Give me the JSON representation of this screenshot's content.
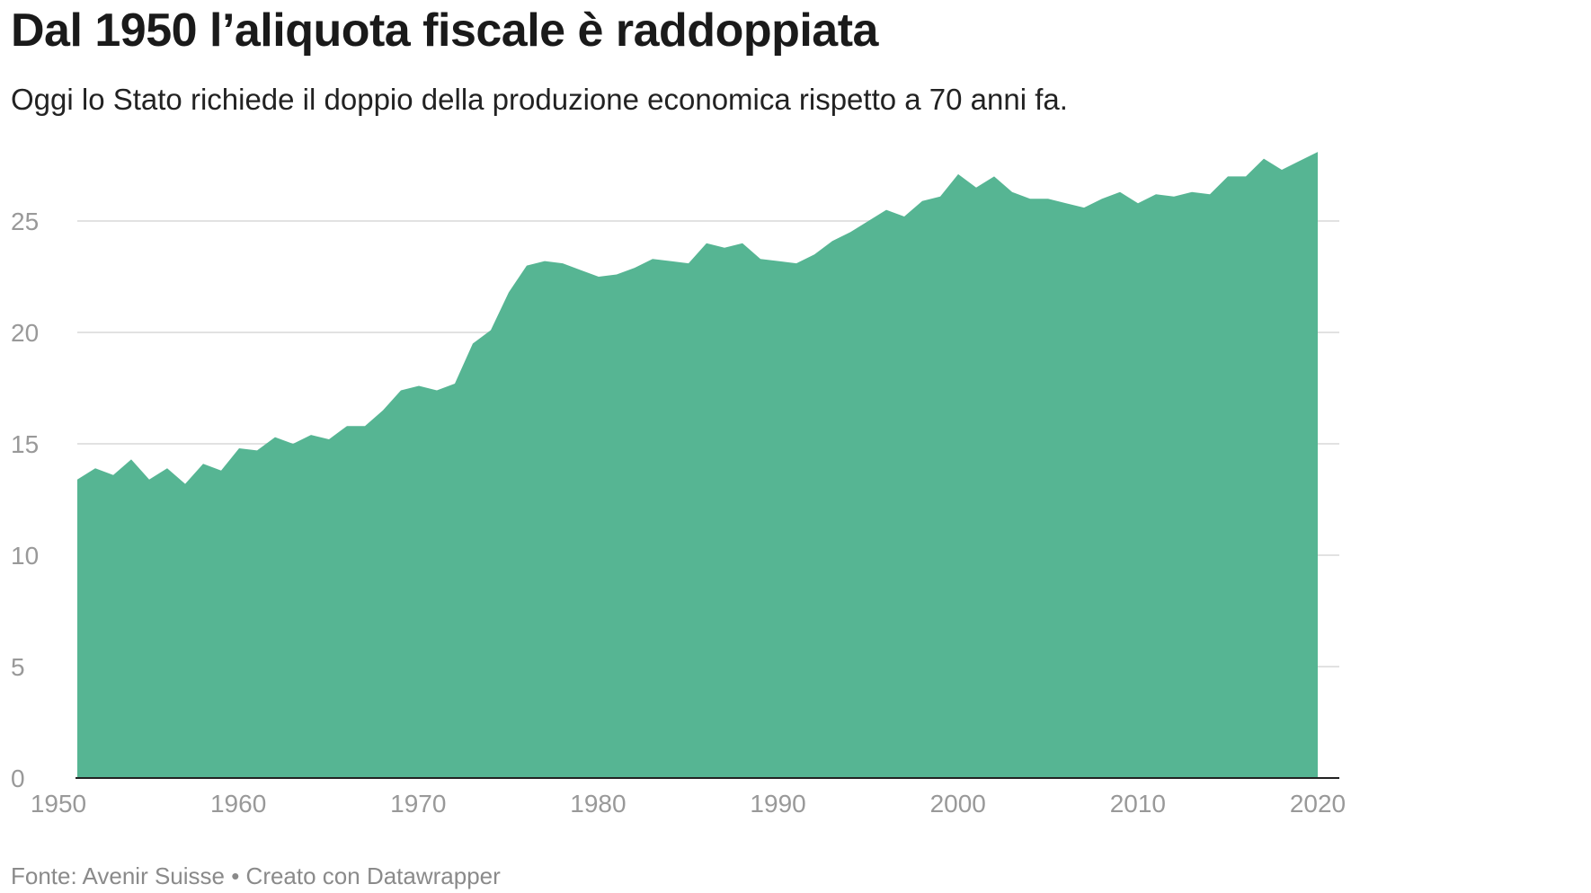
{
  "header": {
    "title": "Dal 1950 l’aliquota fiscale è raddoppiata",
    "subtitle": "Oggi lo Stato richiede il doppio della produzione economica rispetto a 70 anni fa."
  },
  "footer": {
    "source": "Fonte: Avenir Suisse • Creato con Datawrapper"
  },
  "colors": {
    "area": "#56b593",
    "grid": "#e2e2e2",
    "axis": "#222222"
  },
  "chart_data": {
    "type": "area",
    "title": "Dal 1950 l’aliquota fiscale è raddoppiata",
    "subtitle": "Oggi lo Stato richiede il doppio della produzione economica rispetto a 70 anni fa.",
    "xlabel": "",
    "ylabel": "",
    "xlim": [
      1950,
      2020
    ],
    "ylim": [
      0,
      28
    ],
    "x_ticks": [
      1950,
      1960,
      1970,
      1980,
      1990,
      2000,
      2010,
      2020
    ],
    "y_ticks": [
      0,
      5,
      10,
      15,
      20,
      25
    ],
    "grid": true,
    "legend": "none",
    "series": [
      {
        "x": [
          1951,
          1952,
          1953,
          1954,
          1955,
          1956,
          1957,
          1958,
          1959,
          1960,
          1961,
          1962,
          1963,
          1964,
          1965,
          1966,
          1967,
          1968,
          1969,
          1970,
          1971,
          1972,
          1973,
          1974,
          1975,
          1976,
          1977,
          1978,
          1979,
          1980,
          1981,
          1982,
          1983,
          1984,
          1985,
          1986,
          1987,
          1988,
          1989,
          1990,
          1991,
          1992,
          1993,
          1994,
          1995,
          1996,
          1997,
          1998,
          1999,
          2000,
          2001,
          2002,
          2003,
          2004,
          2005,
          2006,
          2007,
          2008,
          2009,
          2010,
          2011,
          2012,
          2013,
          2014,
          2015,
          2016,
          2017,
          2018,
          2019,
          2020
        ],
        "values": [
          13.4,
          13.9,
          13.6,
          14.3,
          13.4,
          13.9,
          13.2,
          14.1,
          13.8,
          14.8,
          14.7,
          15.3,
          15.0,
          15.4,
          15.2,
          15.8,
          15.8,
          16.5,
          17.4,
          17.6,
          17.4,
          17.7,
          19.5,
          20.1,
          21.8,
          23.0,
          23.2,
          23.1,
          22.8,
          22.5,
          22.6,
          22.9,
          23.3,
          23.2,
          23.1,
          24.0,
          23.8,
          24.0,
          23.3,
          23.2,
          23.1,
          23.5,
          24.1,
          24.5,
          25.0,
          25.5,
          25.2,
          25.9,
          26.1,
          27.1,
          26.5,
          27.0,
          26.3,
          26.0,
          26.0,
          25.8,
          25.6,
          26.0,
          26.3,
          25.8,
          26.2,
          26.1,
          26.3,
          26.2,
          27.0,
          27.0,
          27.8,
          27.3,
          27.7,
          28.1
        ]
      }
    ]
  }
}
